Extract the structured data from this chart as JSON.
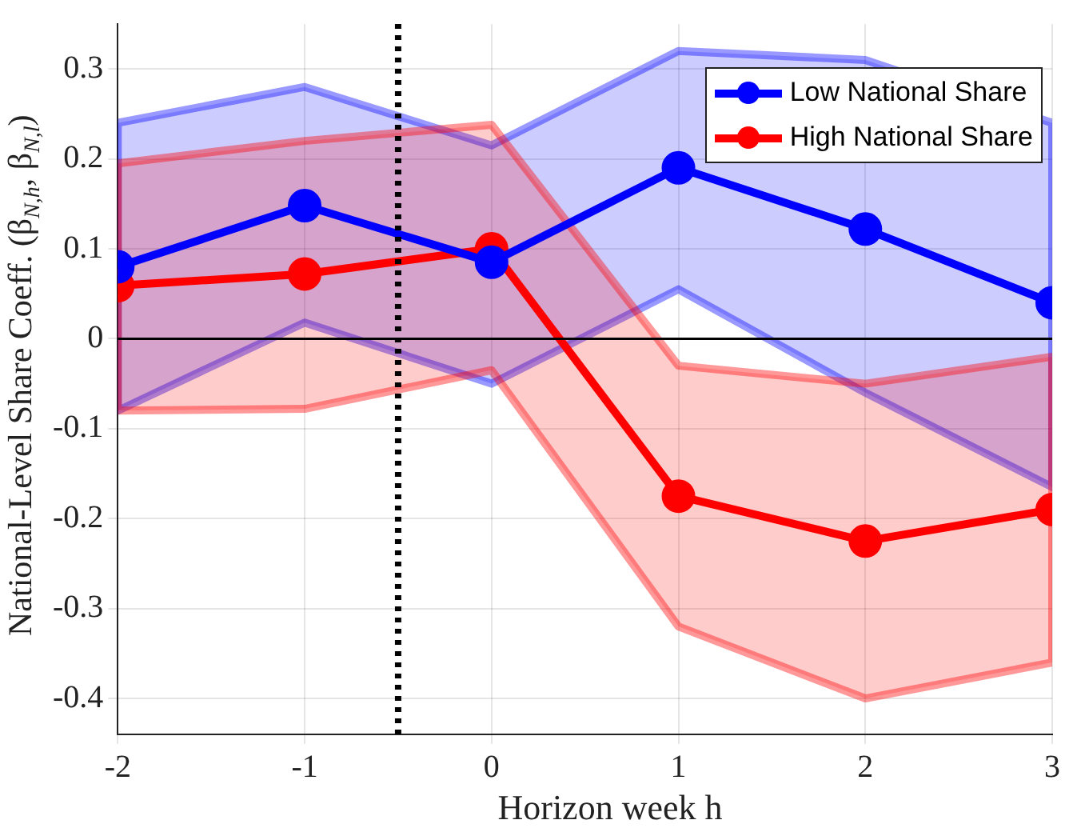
{
  "chart_data": {
    "type": "line",
    "xlabel": "Horizon week h",
    "ylabel": "National-Level Share Coeff. (β$_{N,h}$, β$_{N,l}$)",
    "x": [
      -2,
      -1,
      0,
      1,
      2,
      3
    ],
    "series": [
      {
        "name": "Low National Share",
        "color": "#0000ff",
        "values": [
          0.08,
          0.148,
          0.085,
          0.19,
          0.122,
          0.04
        ],
        "lower": [
          -0.08,
          0.018,
          -0.05,
          0.055,
          -0.06,
          -0.165
        ],
        "upper": [
          0.24,
          0.28,
          0.215,
          0.32,
          0.31,
          0.24
        ]
      },
      {
        "name": "High National Share",
        "color": "#ff0000",
        "values": [
          0.059,
          0.072,
          0.1,
          -0.175,
          -0.225,
          -0.19
        ],
        "lower": [
          -0.08,
          -0.078,
          -0.035,
          -0.32,
          -0.4,
          -0.36
        ],
        "upper": [
          0.195,
          0.22,
          0.238,
          -0.03,
          -0.05,
          -0.02
        ]
      }
    ],
    "xlim": [
      -2,
      3
    ],
    "xticks": [
      -2,
      -1,
      0,
      1,
      2,
      3
    ],
    "ylim": [
      -0.44,
      0.35
    ],
    "yticks": [
      -0.4,
      -0.3,
      -0.2,
      -0.1,
      0,
      0.1,
      0.2,
      0.3
    ],
    "ref_lines": [
      {
        "axis": "x",
        "value": -0.5,
        "color": "#000000",
        "line_style": "dotted"
      },
      {
        "axis": "y",
        "value": 0,
        "color": "#000000",
        "line_style": "solid"
      }
    ],
    "grid": true,
    "legend": "top right",
    "marker": "circle",
    "line_style": "solid"
  }
}
